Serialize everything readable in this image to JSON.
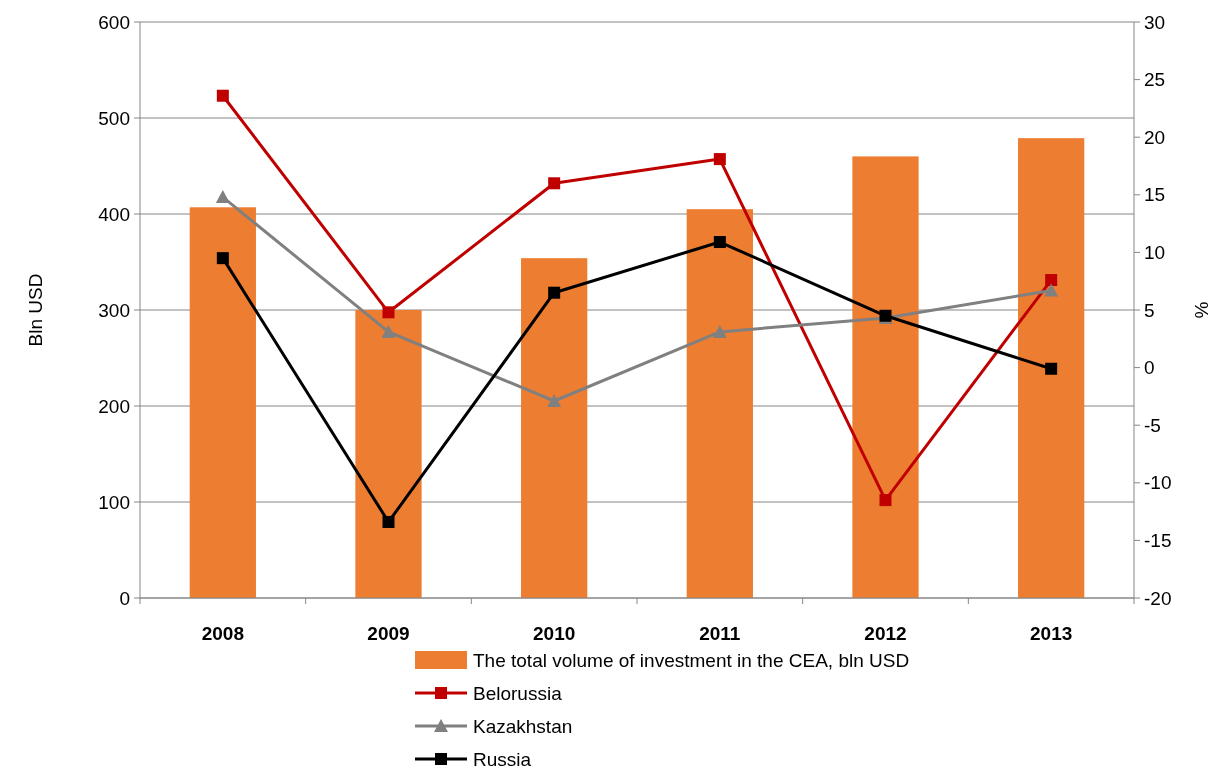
{
  "chart_data": {
    "type": "bar",
    "categories": [
      "2008",
      "2009",
      "2010",
      "2011",
      "2012",
      "2013"
    ],
    "ylabel": "Bln USD",
    "y2label": "%",
    "ylim": [
      0,
      600
    ],
    "yticks": [
      0,
      100,
      200,
      300,
      400,
      500,
      600
    ],
    "y2lim": [
      -20,
      30
    ],
    "y2ticks": [
      -20,
      -15,
      -10,
      -5,
      0,
      5,
      10,
      15,
      20,
      25,
      30
    ],
    "grid": "y",
    "legend": "bottom",
    "series": [
      {
        "name": "The total volume of investment in the CEA, bln USD",
        "color": "#ed7d31",
        "values": [
          407,
          300,
          354,
          405,
          460,
          479
        ]
      },
      {
        "name": "Belorussia",
        "type": "line",
        "axis": "y2",
        "marker": "square",
        "color": "#c00000",
        "values": [
          23.6,
          4.8,
          16.0,
          18.1,
          -11.5,
          7.6
        ]
      },
      {
        "name": "Kazakhstan",
        "type": "line",
        "axis": "y2",
        "marker": "triangle",
        "color": "#808080",
        "values": [
          14.8,
          3.1,
          -2.9,
          3.1,
          4.3,
          6.7
        ]
      },
      {
        "name": "Russia",
        "type": "line",
        "axis": "y2",
        "marker": "square",
        "color": "#000000",
        "values": [
          9.5,
          -13.4,
          6.5,
          10.9,
          4.5,
          -0.1
        ]
      }
    ]
  }
}
